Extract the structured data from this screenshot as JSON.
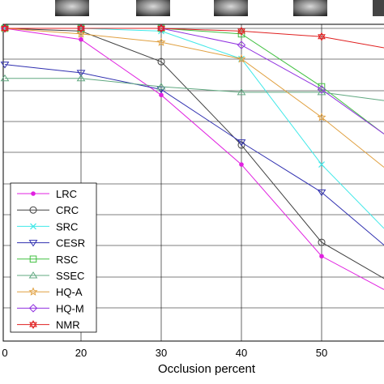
{
  "chart_data": {
    "type": "line",
    "xlabel": "Occlusion percent",
    "x_ticks": [
      "0",
      "20",
      "30",
      "40",
      "50"
    ],
    "x": [
      0,
      20,
      30,
      40,
      50
    ],
    "xlim": [
      0,
      58
    ],
    "ylim": [
      0,
      100
    ],
    "grid": true,
    "legend_position": "bottom-left",
    "series": [
      {
        "name": "LRC",
        "color": "#e020e0",
        "marker": "dot",
        "values": [
          100,
          96,
          76,
          51,
          18
        ]
      },
      {
        "name": "CRC",
        "color": "#404040",
        "marker": "circle",
        "values": [
          100,
          99,
          88,
          58,
          23
        ]
      },
      {
        "name": "SRC",
        "color": "#40e8e8",
        "marker": "x",
        "values": [
          100,
          100,
          99,
          89,
          51
        ]
      },
      {
        "name": "CESR",
        "color": "#3030b0",
        "marker": "triangle-down",
        "values": [
          87,
          84,
          78,
          59,
          41
        ]
      },
      {
        "name": "RSC",
        "color": "#40c040",
        "marker": "square",
        "values": [
          100,
          100,
          100,
          98,
          79
        ]
      },
      {
        "name": "SSEC",
        "color": "#60a880",
        "marker": "triangle-up",
        "values": [
          82,
          82,
          79,
          77,
          77
        ]
      },
      {
        "name": "HQ-A",
        "color": "#e0a040",
        "marker": "star",
        "values": [
          100,
          98,
          95,
          89,
          68
        ]
      },
      {
        "name": "HQ-M",
        "color": "#9030e0",
        "marker": "diamond",
        "values": [
          100,
          100,
          100,
          94,
          78
        ]
      },
      {
        "name": "NMR",
        "color": "#e02020",
        "marker": "hexagram",
        "values": [
          100,
          100,
          100,
          99,
          97
        ]
      }
    ]
  },
  "thumbnails": [
    "face-occlusion-0",
    "face-occlusion-20",
    "face-occlusion-30",
    "face-occlusion-40",
    "face-occlusion-50"
  ]
}
